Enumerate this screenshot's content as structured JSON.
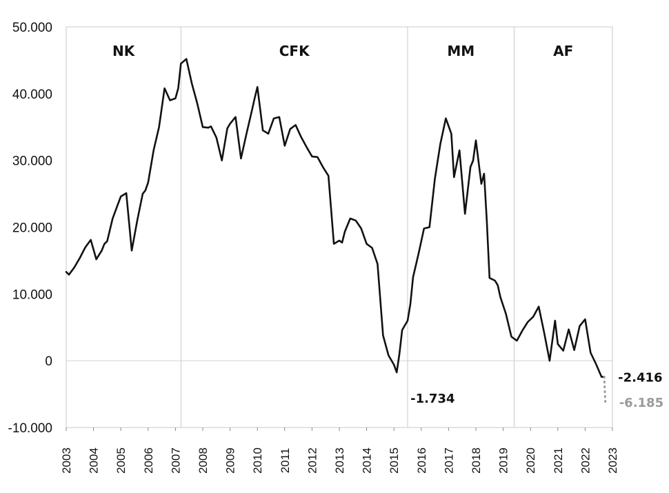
{
  "chart_data": {
    "type": "line",
    "title": "",
    "xlabel": "",
    "ylabel": "",
    "xlim": [
      2003.0,
      2023.0
    ],
    "ylim": [
      -10000,
      50000
    ],
    "y_ticks": [
      {
        "value": 50000,
        "label": "50.000"
      },
      {
        "value": 40000,
        "label": "40.000"
      },
      {
        "value": 30000,
        "label": "30.000"
      },
      {
        "value": 20000,
        "label": "20.000"
      },
      {
        "value": 10000,
        "label": "10.000"
      },
      {
        "value": 0,
        "label": "0"
      },
      {
        "value": -10000,
        "label": "-10.000"
      }
    ],
    "x_ticks": [
      "2003",
      "2004",
      "2005",
      "2006",
      "2007",
      "2008",
      "2009",
      "2010",
      "2011",
      "2012",
      "2013",
      "2014",
      "2015",
      "2016",
      "2017",
      "2018",
      "2019",
      "2020",
      "2021",
      "2022",
      "2023"
    ],
    "grid": "zero line only",
    "periods": [
      {
        "label": "NK",
        "start": 2003.0,
        "end": 2007.2
      },
      {
        "label": "CFK",
        "start": 2007.2,
        "end": 2015.5
      },
      {
        "label": "MM",
        "start": 2015.5,
        "end": 2019.4
      },
      {
        "label": "AF",
        "start": 2019.4,
        "end": 2023.0
      }
    ],
    "series": [
      {
        "color": "#111111",
        "x": [
          2003.0,
          2003.1,
          2003.3,
          2003.5,
          2003.7,
          2003.9,
          2004.1,
          2004.3,
          2004.4,
          2004.5,
          2004.7,
          2004.9,
          2005.0,
          2005.2,
          2005.4,
          2005.6,
          2005.8,
          2005.9,
          2006.0,
          2006.2,
          2006.4,
          2006.6,
          2006.8,
          2007.0,
          2007.1,
          2007.2,
          2007.4,
          2007.6,
          2007.8,
          2008.0,
          2008.2,
          2008.3,
          2008.5,
          2008.7,
          2008.9,
          2009.0,
          2009.2,
          2009.4,
          2009.6,
          2009.8,
          2009.9,
          2010.0,
          2010.2,
          2010.4,
          2010.6,
          2010.8,
          2010.9,
          2011.0,
          2011.2,
          2011.4,
          2011.6,
          2011.8,
          2012.0,
          2012.2,
          2012.4,
          2012.6,
          2012.8,
          2013.0,
          2013.1,
          2013.2,
          2013.4,
          2013.6,
          2013.8,
          2014.0,
          2014.2,
          2014.4,
          2014.6,
          2014.8,
          2015.0,
          2015.1,
          2015.2,
          2015.3,
          2015.5,
          2015.6,
          2015.7,
          2015.9,
          2016.1,
          2016.3,
          2016.5,
          2016.7,
          2016.9,
          2017.1,
          2017.2,
          2017.4,
          2017.6,
          2017.8,
          2017.9,
          2018.0,
          2018.2,
          2018.3,
          2018.4,
          2018.5,
          2018.7,
          2018.8,
          2018.9,
          2019.1,
          2019.3,
          2019.5,
          2019.7,
          2019.9,
          2020.1,
          2020.3,
          2020.5,
          2020.7,
          2020.9,
          2021.0,
          2021.2,
          2021.4,
          2021.6,
          2021.8,
          2022.0,
          2022.2,
          2022.4,
          2022.6,
          2022.7
        ],
        "values": [
          13300,
          12900,
          14000,
          15400,
          17000,
          18100,
          15200,
          16500,
          17500,
          17900,
          21300,
          23500,
          24600,
          25100,
          16500,
          21000,
          25000,
          25500,
          26700,
          31500,
          35000,
          40800,
          39000,
          39300,
          40800,
          44500,
          45200,
          41500,
          38500,
          35000,
          34900,
          35100,
          33400,
          30000,
          34800,
          35500,
          36500,
          30300,
          34000,
          37500,
          39300,
          41000,
          34500,
          34000,
          36300,
          36500,
          34400,
          32200,
          34700,
          35300,
          33500,
          32000,
          30600,
          30500,
          29000,
          27700,
          17500,
          18000,
          17700,
          19300,
          21300,
          21000,
          19800,
          17500,
          16900,
          14500,
          3800,
          800,
          -600,
          -1734,
          1000,
          4600,
          6000,
          8500,
          12500,
          16000,
          19800,
          20000,
          27300,
          32500,
          36300,
          34000,
          27500,
          31500,
          22000,
          29000,
          30000,
          33000,
          26500,
          28000,
          21000,
          12400,
          12000,
          11300,
          9500,
          7000,
          3600,
          3000,
          4500,
          5800,
          6600,
          8100,
          4200,
          0,
          6000,
          2500,
          1500,
          4700,
          1600,
          5200,
          6200,
          1200,
          -500,
          -2416,
          -2416
        ],
        "projection": {
          "x": [
            2022.7,
            2022.72,
            2022.74
          ],
          "values": [
            -2416,
            -4300,
            -6185
          ],
          "color": "#9a9a9a",
          "style": "dotted"
        }
      }
    ],
    "annotations": [
      {
        "text": "-1.734",
        "x": 2015.25,
        "y": -1734
      },
      {
        "text": "-2.416",
        "x": 2022.7,
        "y": -2416
      },
      {
        "text": "-6.185",
        "x": 2022.74,
        "y": -6185,
        "color": "#9a9a9a"
      }
    ]
  }
}
